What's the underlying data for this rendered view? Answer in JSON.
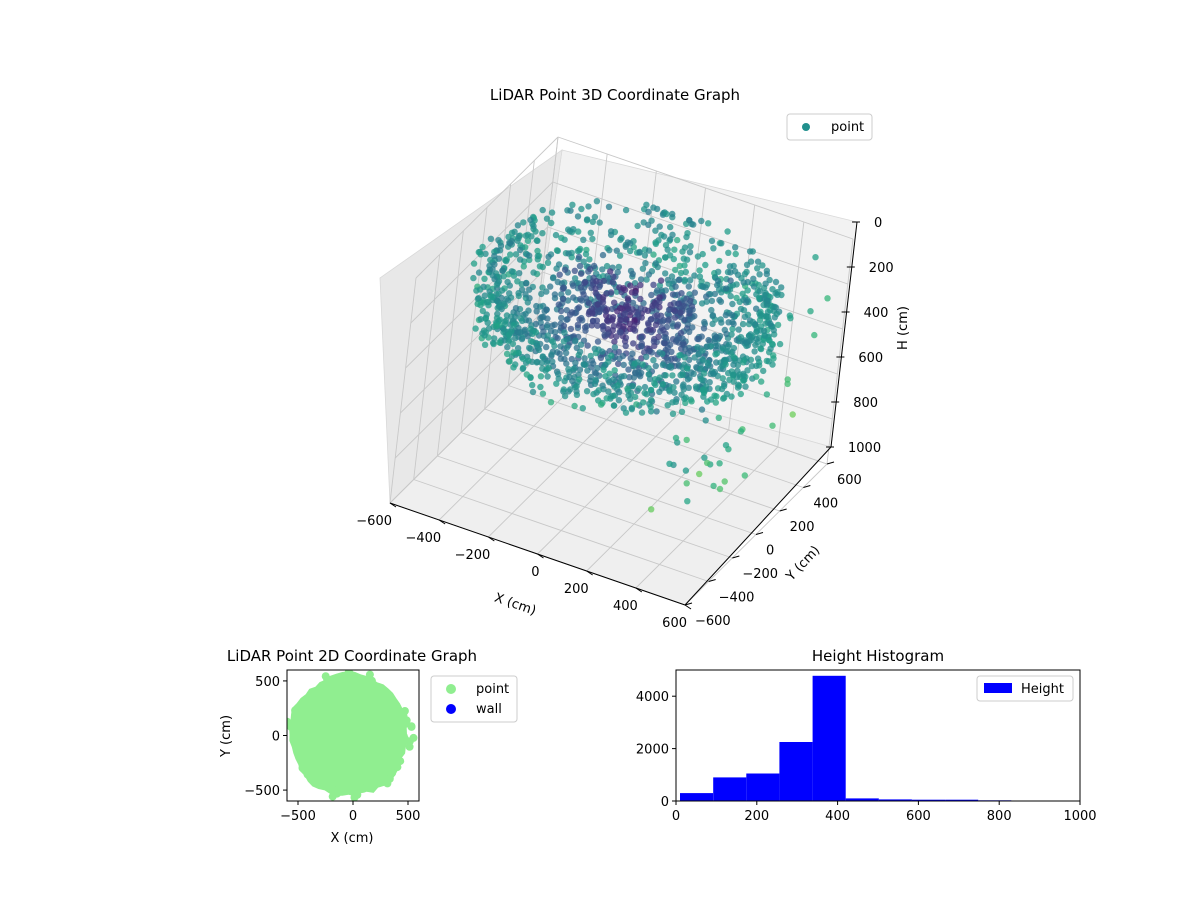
{
  "chart_data": [
    {
      "type": "scatter",
      "title": "LiDAR Point 3D Coordinate Graph",
      "xlabel": "X (cm)",
      "ylabel": "Y (cm)",
      "zlabel": "H (cm)",
      "xlim": [
        -600,
        600
      ],
      "ylim": [
        -600,
        600
      ],
      "zlim": [
        0,
        1000
      ],
      "z_inverted": true,
      "x_ticks": [
        "−600",
        "−400",
        "−200",
        "0",
        "200",
        "400",
        "600"
      ],
      "y_ticks": [
        "−600",
        "−400",
        "−200",
        "0",
        "200",
        "400",
        "600"
      ],
      "z_ticks": [
        "0",
        "200",
        "400",
        "600",
        "800",
        "1000"
      ],
      "legend": {
        "position": "top-right",
        "entries": [
          {
            "label": "point",
            "color": "#21908d"
          }
        ]
      },
      "colormap": "viridis",
      "grid": true
    },
    {
      "type": "scatter",
      "title": "LiDAR Point 2D Coordinate Graph",
      "xlabel": "X (cm)",
      "ylabel": "Y (cm)",
      "xlim": [
        -600,
        600
      ],
      "ylim": [
        -600,
        600
      ],
      "x_ticks": [
        "−500",
        "0",
        "500"
      ],
      "y_ticks": [
        "500",
        "0",
        "−500"
      ],
      "legend": {
        "position": "outside-right",
        "entries": [
          {
            "label": "point",
            "color": "#90ee90"
          },
          {
            "label": "wall",
            "color": "#0000ff"
          }
        ]
      }
    },
    {
      "type": "bar",
      "title": "Height Histogram",
      "xlim": [
        0,
        1000
      ],
      "ylim": [
        0,
        5000
      ],
      "x_ticks": [
        "0",
        "200",
        "400",
        "600",
        "800",
        "1000"
      ],
      "y_ticks": [
        "0",
        "2000",
        "4000"
      ],
      "bins": [
        {
          "start": 10,
          "end": 92,
          "count": 300
        },
        {
          "start": 92,
          "end": 174,
          "count": 900
        },
        {
          "start": 174,
          "end": 256,
          "count": 1050
        },
        {
          "start": 256,
          "end": 338,
          "count": 2250
        },
        {
          "start": 338,
          "end": 420,
          "count": 4780
        },
        {
          "start": 420,
          "end": 502,
          "count": 100
        },
        {
          "start": 502,
          "end": 584,
          "count": 60
        },
        {
          "start": 584,
          "end": 666,
          "count": 50
        },
        {
          "start": 666,
          "end": 748,
          "count": 50
        },
        {
          "start": 748,
          "end": 830,
          "count": 25
        }
      ],
      "bar_color": "#0000ff",
      "legend": {
        "position": "top-right",
        "entries": [
          {
            "label": "Height",
            "color": "#0000ff"
          }
        ]
      }
    }
  ]
}
